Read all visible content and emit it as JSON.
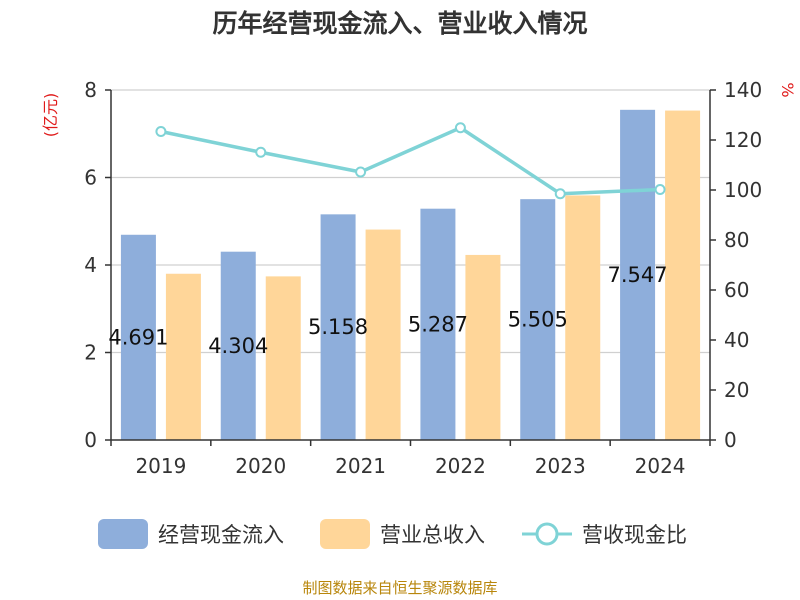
{
  "chart_data": {
    "type": "bar",
    "title": "历年经营现金流入、营业收入情况",
    "unit_left": "(亿元)",
    "unit_right": "%",
    "categories": [
      "2019",
      "2020",
      "2021",
      "2022",
      "2023",
      "2024"
    ],
    "series": [
      {
        "name": "经营现金流入",
        "type": "bar",
        "axis": "left",
        "color": "#8eaedb",
        "values": [
          4.691,
          4.304,
          5.158,
          5.287,
          5.505,
          7.547
        ],
        "labels": [
          "4.691",
          "4.304",
          "5.158",
          "5.287",
          "5.505",
          "7.547"
        ]
      },
      {
        "name": "营业总收入",
        "type": "bar",
        "axis": "left",
        "color": "#ffd699",
        "values": [
          3.8,
          3.74,
          4.81,
          4.23,
          5.59,
          7.53
        ]
      },
      {
        "name": "营收现金比",
        "type": "line",
        "axis": "right",
        "color": "#7fd3d6",
        "values": [
          123.4,
          115.1,
          107.2,
          124.9,
          98.5,
          100.2
        ]
      }
    ],
    "y_left": {
      "min": 0,
      "max": 8,
      "ticks": [
        "0",
        "2",
        "4",
        "6",
        "8"
      ]
    },
    "y_right": {
      "min": 0,
      "max": 140,
      "ticks": [
        "0",
        "20",
        "40",
        "60",
        "80",
        "100",
        "120",
        "140"
      ]
    },
    "grid": true,
    "legend_position": "bottom"
  },
  "source": "制图数据来自恒生聚源数据库"
}
